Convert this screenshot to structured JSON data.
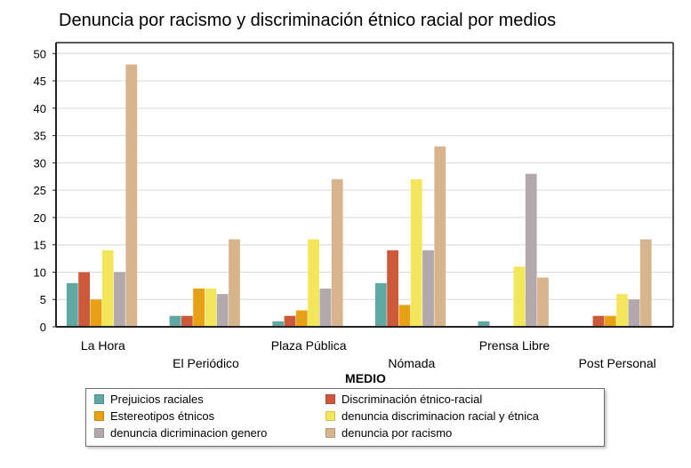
{
  "chart_data": {
    "type": "bar",
    "title": "Denuncia por racismo y discriminación étnico racial por medios",
    "xlabel": "MEDIO",
    "ylabel": "",
    "ylim": [
      0,
      52
    ],
    "yticks": [
      0,
      5,
      10,
      15,
      20,
      25,
      30,
      35,
      40,
      45,
      50
    ],
    "grid": true,
    "legend_position": "bottom",
    "categories": [
      "La Hora",
      "El Periódico",
      "Plaza Pública",
      "Nómada",
      "Prensa Libre",
      "Post Personal"
    ],
    "series": [
      {
        "name": "Prejuicios raciales",
        "color": "#5fa8a3",
        "values": [
          8,
          2,
          1,
          8,
          1,
          0
        ]
      },
      {
        "name": "Discriminación étnico-racial",
        "color": "#cc5a3a",
        "values": [
          10,
          2,
          2,
          14,
          0,
          2
        ]
      },
      {
        "name": "Estereotipos étnicos",
        "color": "#e8a014",
        "values": [
          5,
          7,
          3,
          4,
          0,
          2
        ]
      },
      {
        "name": "denuncia discriminacion racial y étnica",
        "color": "#f4e65a",
        "values": [
          14,
          7,
          16,
          27,
          11,
          6
        ]
      },
      {
        "name": "denuncia dicriminacion genero",
        "color": "#b3a9ad",
        "values": [
          10,
          6,
          7,
          14,
          28,
          5
        ]
      },
      {
        "name": "denuncia por racismo",
        "color": "#d8b48c",
        "values": [
          48,
          16,
          27,
          33,
          9,
          16
        ]
      }
    ]
  }
}
